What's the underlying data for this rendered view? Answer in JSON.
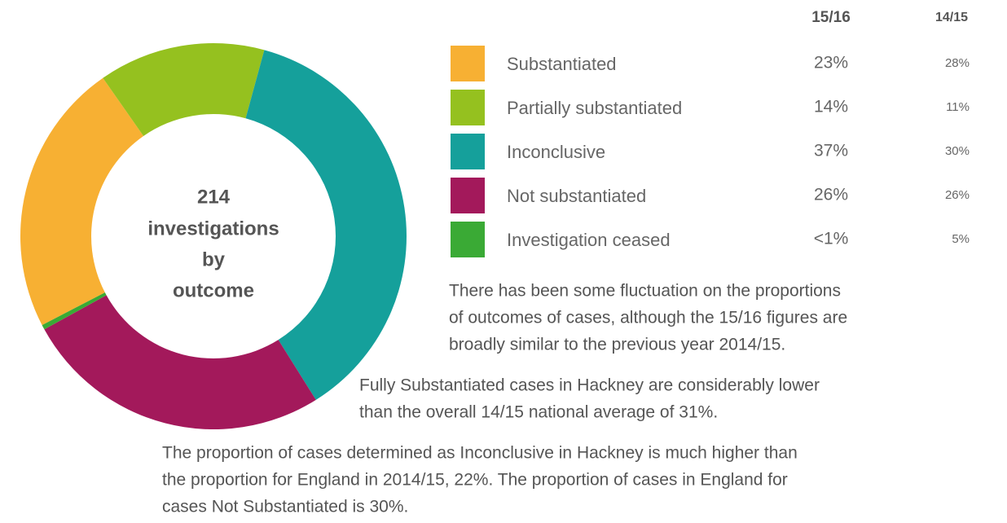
{
  "chart_data": {
    "type": "donut",
    "total": 214,
    "center_lines": [
      "investigations",
      "by",
      "outcome"
    ],
    "categories": [
      "Substantiated",
      "Partially substantiated",
      "Inconclusive",
      "Not substantiated",
      "Investigation ceased"
    ],
    "colors": [
      "#f7b033",
      "#95c11f",
      "#15a09b",
      "#a3195b",
      "#3aaa35"
    ],
    "series": [
      {
        "name": "15/16",
        "values": [
          23,
          14,
          37,
          26,
          0.4
        ],
        "value_labels": [
          "23%",
          "14%",
          "37%",
          "26%",
          "<1%"
        ]
      },
      {
        "name": "14/15",
        "values": [
          28,
          11,
          30,
          26,
          5
        ],
        "value_labels": [
          "28%",
          "11%",
          "30%",
          "26%",
          "5%"
        ]
      }
    ],
    "notes": [
      [
        "There has been some fluctuation on the proportions",
        "of outcomes of cases, although the 15/16 figures are",
        "broadly similar to the previous year 2014/15."
      ],
      [
        "Fully Substantiated cases in Hackney are considerably lower",
        "than the overall 14/15 national average of 31%."
      ],
      [
        "The proportion of cases determined as Inconclusive in Hackney is much higher than",
        "the proportion for England in 2014/15, 22%. The proportion of cases in England for",
        "cases Not Substantiated is 30%."
      ]
    ]
  }
}
